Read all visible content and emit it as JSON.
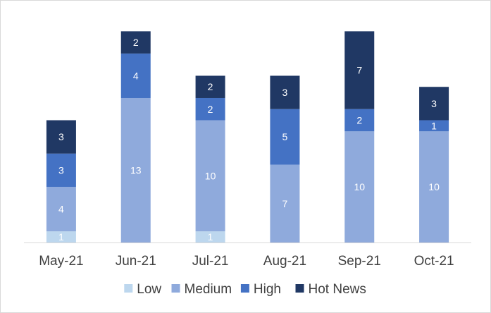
{
  "chart_data": {
    "type": "bar",
    "stacked": true,
    "categories": [
      "May-21",
      "Jun-21",
      "Jul-21",
      "Aug-21",
      "Sep-21",
      "Oct-21"
    ],
    "series": [
      {
        "name": "Low",
        "color": "#bdd7ee",
        "values": [
          1,
          0,
          1,
          0,
          0,
          0
        ]
      },
      {
        "name": "Medium",
        "color": "#8faadc",
        "values": [
          4,
          13,
          10,
          7,
          10,
          10
        ]
      },
      {
        "name": "High",
        "color": "#4472c4",
        "values": [
          3,
          4,
          2,
          5,
          2,
          1
        ]
      },
      {
        "name": "Hot News",
        "color": "#203864",
        "values": [
          3,
          2,
          2,
          3,
          7,
          3
        ]
      }
    ],
    "ylim": [
      0,
      19
    ],
    "grid": false,
    "legend": "bottom"
  }
}
